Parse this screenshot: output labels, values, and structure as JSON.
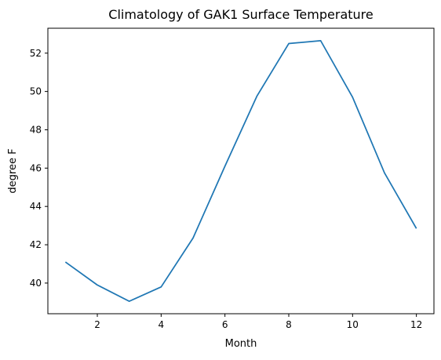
{
  "chart_data": {
    "type": "line",
    "title": "Climatology of GAK1 Surface Temperature",
    "xlabel": "Month",
    "ylabel": "degree F",
    "xlim": [
      0.45,
      12.55
    ],
    "ylim": [
      38.4,
      53.3
    ],
    "xticks": [
      2,
      4,
      6,
      8,
      10,
      12
    ],
    "yticks": [
      40,
      42,
      44,
      46,
      48,
      50,
      52
    ],
    "grid": false,
    "series": [
      {
        "color": "#1f77b4",
        "x": [
          1,
          2,
          3,
          4,
          5,
          6,
          7,
          8,
          9,
          10,
          11,
          12
        ],
        "y": [
          41.1,
          39.9,
          39.05,
          39.8,
          42.35,
          46.1,
          49.75,
          52.5,
          52.65,
          49.7,
          45.75,
          42.85
        ]
      }
    ]
  }
}
